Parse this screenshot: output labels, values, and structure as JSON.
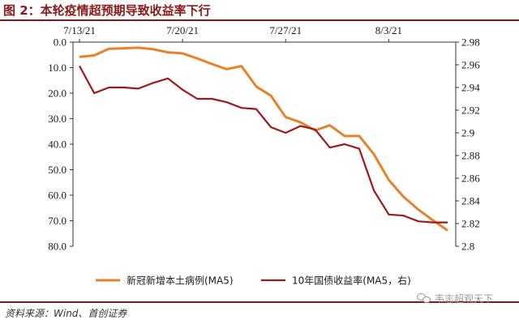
{
  "title": "图 2：本轮疫情超预期导致收益率下行",
  "source": "资料来源：Wind、首创证券",
  "watermark": "韦志超观天下",
  "wm_icon": "wechat-icon",
  "chart_data": {
    "type": "line",
    "x_ticks": [
      "7/13/21",
      "7/20/21",
      "7/27/21",
      "8/3/21"
    ],
    "x_tick_index": [
      0,
      7,
      14,
      21
    ],
    "left_axis": {
      "reversed": true,
      "ylim": [
        0,
        80
      ],
      "tick_labels": [
        "0.0",
        "10.0",
        "20.0",
        "30.0",
        "40.0",
        "50.0",
        "60.0",
        "70.0",
        "80.0"
      ],
      "ticks": [
        0,
        10,
        20,
        30,
        40,
        50,
        60,
        70,
        80
      ]
    },
    "right_axis": {
      "ylim": [
        2.8,
        2.98
      ],
      "tick_labels": [
        "2.8",
        "2.82",
        "2.84",
        "2.86",
        "2.88",
        "2.9",
        "2.92",
        "2.94",
        "2.96",
        "2.98"
      ],
      "ticks": [
        2.8,
        2.82,
        2.84,
        2.86,
        2.88,
        2.9,
        2.92,
        2.94,
        2.96,
        2.98
      ]
    },
    "series": [
      {
        "name": "新冠新增本土病例(MA5)",
        "axis": "left",
        "color": "#E8822A",
        "x": [
          0,
          1,
          2,
          3,
          4,
          5,
          6,
          7,
          8,
          9,
          10,
          11,
          12,
          13,
          14,
          15,
          16,
          17,
          18,
          19,
          20,
          21,
          22,
          23,
          24,
          25
        ],
        "values": [
          5.8,
          5.2,
          2.6,
          2.4,
          2.2,
          2.8,
          4.0,
          4.4,
          6.4,
          8.6,
          10.6,
          9.4,
          17.4,
          21.0,
          29.4,
          31.4,
          34.6,
          32.6,
          36.8,
          36.8,
          44.0,
          54.0,
          60.6,
          65.6,
          69.8,
          73.8
        ]
      },
      {
        "name": "10年国债收益率(MA5，右)",
        "axis": "right",
        "color": "#A01818",
        "x": [
          0,
          1,
          2,
          3,
          4,
          5,
          6,
          7,
          8,
          9,
          10,
          11,
          12,
          13,
          14,
          15,
          16,
          17,
          18,
          19,
          20,
          21,
          22,
          23,
          24,
          25
        ],
        "values": [
          2.959,
          2.935,
          2.94,
          2.94,
          2.939,
          2.944,
          2.948,
          2.938,
          2.93,
          2.93,
          2.927,
          2.922,
          2.921,
          2.905,
          2.9,
          2.906,
          2.903,
          2.887,
          2.89,
          2.886,
          2.849,
          2.828,
          2.827,
          2.822,
          2.821,
          2.821
        ]
      }
    ],
    "legend": "bottom",
    "grid": false
  }
}
